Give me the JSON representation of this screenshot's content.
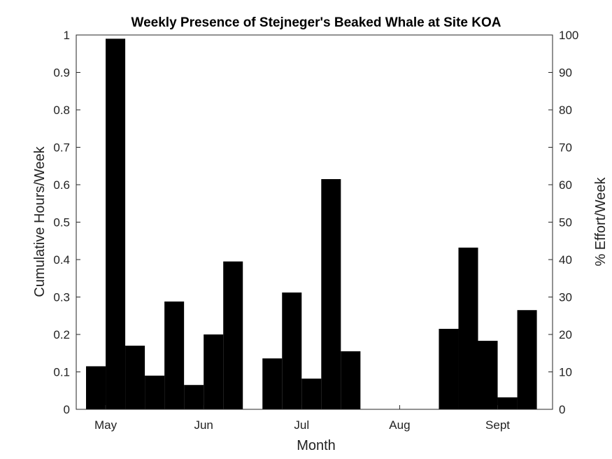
{
  "chart_data": {
    "type": "bar",
    "title": "Weekly Presence of Stejneger's Beaked Whale at Site KOA",
    "xlabel": "Month",
    "ylabel": "Cumulative Hours/Week",
    "ylabel_right": "% Effort/Week",
    "ylim": [
      0,
      1
    ],
    "ylim_right": [
      0,
      100
    ],
    "yticks": [
      "0",
      "0.1",
      "0.2",
      "0.3",
      "0.4",
      "0.5",
      "0.6",
      "0.7",
      "0.8",
      "0.9",
      "1"
    ],
    "yticks_right": [
      "0",
      "10",
      "20",
      "30",
      "40",
      "50",
      "60",
      "70",
      "80",
      "90",
      "100"
    ],
    "xlim_weeks": [
      0,
      24.3
    ],
    "xticks": [
      {
        "label": "May",
        "week": 1.5
      },
      {
        "label": "Jun",
        "week": 6.5
      },
      {
        "label": "Jul",
        "week": 11.5
      },
      {
        "label": "Aug",
        "week": 16.5
      },
      {
        "label": "Sept",
        "week": 21.5
      }
    ],
    "series": [
      {
        "values": [
          0.115,
          0.99,
          0.17,
          0.09,
          0.288,
          0.065,
          0.2,
          0.395,
          null,
          0.136,
          0.312,
          0.082,
          0.615,
          0.155,
          0,
          0,
          0,
          0,
          0.215,
          0.432,
          0.183,
          0.032,
          0.265
        ]
      }
    ],
    "first_week": 1,
    "grid": false,
    "bar_color": "#000000"
  }
}
